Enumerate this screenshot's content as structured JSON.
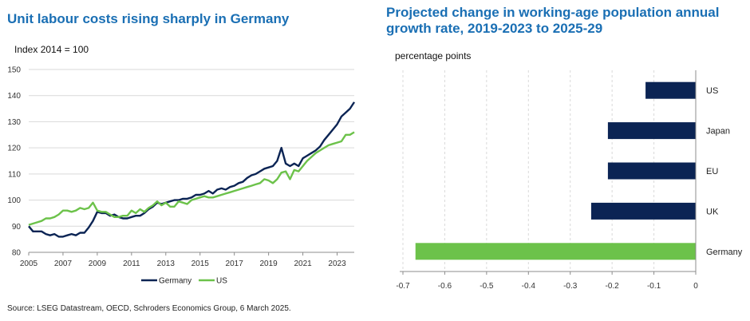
{
  "colors": {
    "title": "#1a6fb4",
    "germany": "#0b2454",
    "us": "#6cc24a",
    "grid": "#d9d9d9"
  },
  "source": "Source: LSEG Datastream, OECD, Schroders Economics Group,  6 March 2025.",
  "chart_data": [
    {
      "type": "line",
      "title": "Unit labour costs rising sharply in Germany",
      "subtitle": "Index 2014 = 100",
      "xlabel": "",
      "ylabel": "",
      "xlim": [
        2005,
        2024
      ],
      "ylim": [
        80,
        150
      ],
      "x_ticks": [
        "2005",
        "2007",
        "2009",
        "2011",
        "2013",
        "2015",
        "2017",
        "2019",
        "2021",
        "2023"
      ],
      "y_ticks": [
        "80",
        "90",
        "100",
        "110",
        "120",
        "130",
        "140",
        "150"
      ],
      "grid": true,
      "legend": "bottom",
      "series": [
        {
          "name": "Germany",
          "color": "#0b2454",
          "points": [
            [
              2005.0,
              90
            ],
            [
              2005.25,
              88
            ],
            [
              2005.5,
              88
            ],
            [
              2005.75,
              88
            ],
            [
              2006.0,
              87
            ],
            [
              2006.25,
              86.5
            ],
            [
              2006.5,
              87
            ],
            [
              2006.75,
              86
            ],
            [
              2007.0,
              86
            ],
            [
              2007.25,
              86.5
            ],
            [
              2007.5,
              87
            ],
            [
              2007.75,
              86.5
            ],
            [
              2008.0,
              87.5
            ],
            [
              2008.25,
              87.5
            ],
            [
              2008.5,
              89.5
            ],
            [
              2008.75,
              92
            ],
            [
              2009.0,
              95.5
            ],
            [
              2009.25,
              95
            ],
            [
              2009.5,
              95
            ],
            [
              2009.75,
              94
            ],
            [
              2010.0,
              94.5
            ],
            [
              2010.25,
              93.5
            ],
            [
              2010.5,
              93
            ],
            [
              2010.75,
              93
            ],
            [
              2011.0,
              93.5
            ],
            [
              2011.25,
              94
            ],
            [
              2011.5,
              94
            ],
            [
              2011.75,
              95
            ],
            [
              2012.0,
              96.5
            ],
            [
              2012.25,
              97.5
            ],
            [
              2012.5,
              99
            ],
            [
              2012.75,
              98.5
            ],
            [
              2013.0,
              99
            ],
            [
              2013.25,
              99.5
            ],
            [
              2013.5,
              100
            ],
            [
              2013.75,
              100
            ],
            [
              2014.0,
              100.5
            ],
            [
              2014.25,
              100.5
            ],
            [
              2014.5,
              101
            ],
            [
              2014.75,
              102
            ],
            [
              2015.0,
              102
            ],
            [
              2015.25,
              102.5
            ],
            [
              2015.5,
              103.5
            ],
            [
              2015.75,
              102.5
            ],
            [
              2016.0,
              104
            ],
            [
              2016.25,
              104.5
            ],
            [
              2016.5,
              104
            ],
            [
              2016.75,
              105
            ],
            [
              2017.0,
              105.5
            ],
            [
              2017.25,
              106.5
            ],
            [
              2017.5,
              107
            ],
            [
              2017.75,
              108.5
            ],
            [
              2018.0,
              109.5
            ],
            [
              2018.25,
              110
            ],
            [
              2018.5,
              111
            ],
            [
              2018.75,
              112
            ],
            [
              2019.0,
              112.5
            ],
            [
              2019.25,
              113
            ],
            [
              2019.5,
              115
            ],
            [
              2019.75,
              120
            ],
            [
              2020.0,
              114
            ],
            [
              2020.25,
              113
            ],
            [
              2020.5,
              114
            ],
            [
              2020.75,
              113
            ],
            [
              2021.0,
              116
            ],
            [
              2021.25,
              117
            ],
            [
              2021.5,
              118
            ],
            [
              2021.75,
              119
            ],
            [
              2022.0,
              120.5
            ],
            [
              2022.25,
              123
            ],
            [
              2022.5,
              125
            ],
            [
              2022.75,
              127
            ],
            [
              2023.0,
              129
            ],
            [
              2023.25,
              132
            ],
            [
              2023.5,
              133.5
            ],
            [
              2023.75,
              135
            ],
            [
              2024.0,
              137.5
            ]
          ]
        },
        {
          "name": "US",
          "color": "#6cc24a",
          "points": [
            [
              2005.0,
              90.5
            ],
            [
              2005.25,
              91
            ],
            [
              2005.5,
              91.5
            ],
            [
              2005.75,
              92
            ],
            [
              2006.0,
              93
            ],
            [
              2006.25,
              93
            ],
            [
              2006.5,
              93.5
            ],
            [
              2006.75,
              94.5
            ],
            [
              2007.0,
              96
            ],
            [
              2007.25,
              96
            ],
            [
              2007.5,
              95.5
            ],
            [
              2007.75,
              96
            ],
            [
              2008.0,
              97
            ],
            [
              2008.25,
              96.5
            ],
            [
              2008.5,
              97
            ],
            [
              2008.75,
              99
            ],
            [
              2009.0,
              96
            ],
            [
              2009.25,
              95.5
            ],
            [
              2009.5,
              95.5
            ],
            [
              2009.75,
              94.5
            ],
            [
              2010.0,
              93.5
            ],
            [
              2010.25,
              93.5
            ],
            [
              2010.5,
              94
            ],
            [
              2010.75,
              94
            ],
            [
              2011.0,
              96
            ],
            [
              2011.25,
              95
            ],
            [
              2011.5,
              96.5
            ],
            [
              2011.75,
              95.5
            ],
            [
              2012.0,
              97
            ],
            [
              2012.25,
              98
            ],
            [
              2012.5,
              99.5
            ],
            [
              2012.75,
              98
            ],
            [
              2013.0,
              99
            ],
            [
              2013.25,
              97.5
            ],
            [
              2013.5,
              97.5
            ],
            [
              2013.75,
              99.5
            ],
            [
              2014.0,
              99
            ],
            [
              2014.25,
              98.5
            ],
            [
              2014.5,
              100
            ],
            [
              2014.75,
              100.5
            ],
            [
              2015.0,
              101
            ],
            [
              2015.25,
              101.5
            ],
            [
              2015.5,
              101
            ],
            [
              2015.75,
              101
            ],
            [
              2016.0,
              101.5
            ],
            [
              2016.25,
              102
            ],
            [
              2016.5,
              102.5
            ],
            [
              2016.75,
              103
            ],
            [
              2017.0,
              103.5
            ],
            [
              2017.25,
              104
            ],
            [
              2017.5,
              104.5
            ],
            [
              2017.75,
              105
            ],
            [
              2018.0,
              105.5
            ],
            [
              2018.25,
              106
            ],
            [
              2018.5,
              106.5
            ],
            [
              2018.75,
              108
            ],
            [
              2019.0,
              107.5
            ],
            [
              2019.25,
              106.5
            ],
            [
              2019.5,
              108
            ],
            [
              2019.75,
              110.5
            ],
            [
              2020.0,
              111
            ],
            [
              2020.25,
              108
            ],
            [
              2020.5,
              111.5
            ],
            [
              2020.75,
              111
            ],
            [
              2021.0,
              113
            ],
            [
              2021.25,
              115
            ],
            [
              2021.5,
              116.5
            ],
            [
              2021.75,
              118
            ],
            [
              2022.0,
              119
            ],
            [
              2022.25,
              120
            ],
            [
              2022.5,
              121
            ],
            [
              2022.75,
              121.5
            ],
            [
              2023.0,
              122
            ],
            [
              2023.25,
              122.5
            ],
            [
              2023.5,
              125
            ],
            [
              2023.75,
              125
            ],
            [
              2024.0,
              126
            ]
          ]
        }
      ]
    },
    {
      "type": "bar",
      "orientation": "horizontal",
      "title": "Projected change in working-age population annual growth rate, 2019-2023 to 2025-29",
      "subtitle": "percentage points",
      "xlabel": "",
      "ylabel": "",
      "xlim": [
        -0.7,
        0
      ],
      "x_ticks": [
        "-0.7",
        "-0.6",
        "-0.5",
        "-0.4",
        "-0.3",
        "-0.2",
        "-0.1",
        "0"
      ],
      "grid": true,
      "legend": "none",
      "categories": [
        "US",
        "Japan",
        "EU",
        "UK",
        "Germany"
      ],
      "values": [
        -0.12,
        -0.21,
        -0.21,
        -0.25,
        -0.67
      ],
      "bar_colors": [
        "#0b2454",
        "#0b2454",
        "#0b2454",
        "#0b2454",
        "#6cc24a"
      ]
    }
  ]
}
